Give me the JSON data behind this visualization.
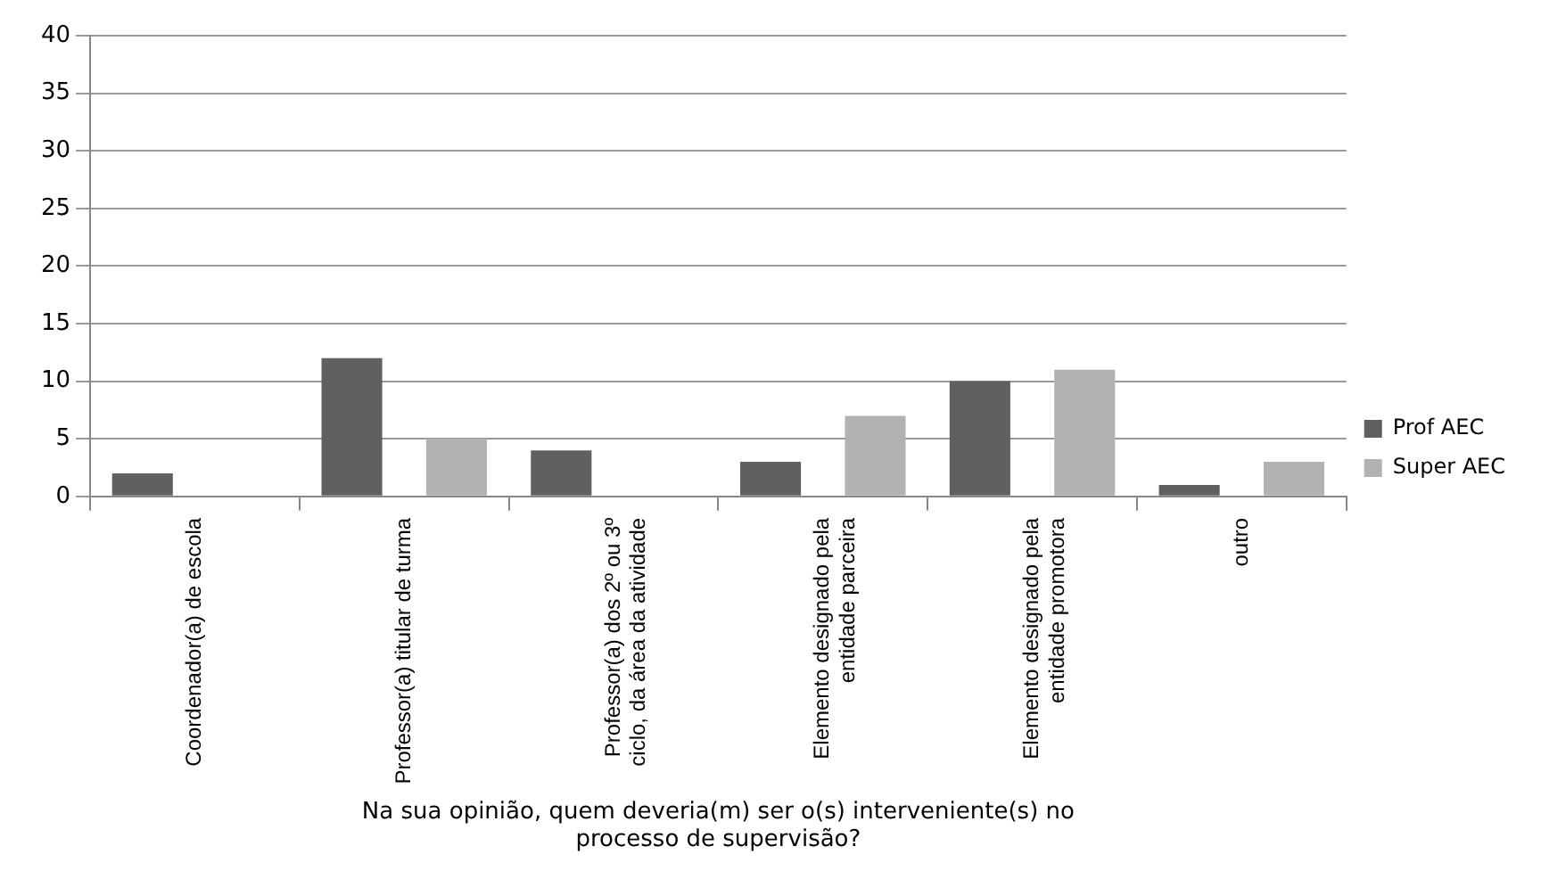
{
  "chart_data": {
    "type": "bar",
    "xlabel": "Na sua opinião, quem deveria(m) ser o(s) interveniente(s) no processo de supervisão?",
    "categories": [
      "Coordenador(a) de escola",
      "Professor(a) titular de turma",
      "Professor(a) dos 2º ou 3º ciclo, da área da atividade",
      "Elemento designado pela entidade parceira",
      "Elemento designado pela entidade promotora",
      "outro"
    ],
    "series": [
      {
        "name": "Prof AEC",
        "color": "#606060",
        "values": [
          2,
          12,
          4,
          3,
          10,
          1
        ]
      },
      {
        "name": "Super AEC",
        "color": "#b2b2b2",
        "values": [
          0,
          5,
          0,
          7,
          11,
          3
        ]
      }
    ],
    "ylim": [
      0,
      40
    ],
    "yticks": [
      0,
      5,
      10,
      15,
      20,
      25,
      30,
      35,
      40
    ],
    "grid": "y",
    "legend": "right"
  }
}
